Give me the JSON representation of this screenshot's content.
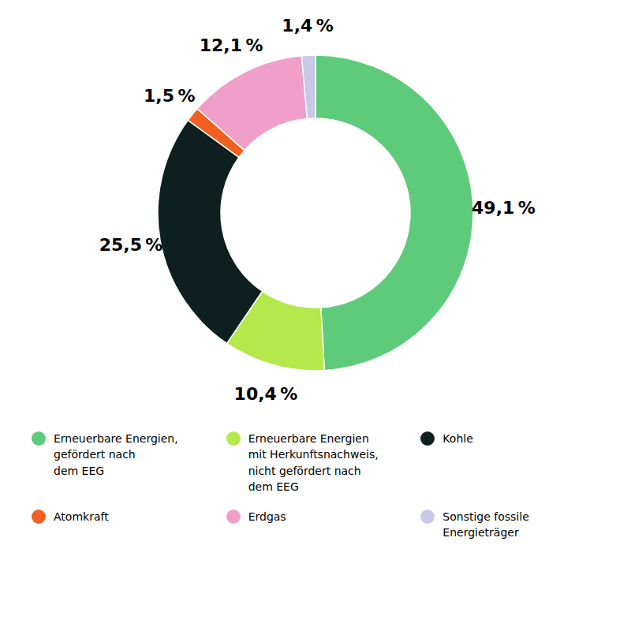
{
  "chart_data": {
    "type": "donut",
    "categories": [
      "Erneuerbare Energien,\ngefördert nach\ndem EEG",
      "Erneuerbare Energien\nmit Herkunftsnachweis,\nnicht gefördert nach\ndem EEG",
      "Kohle",
      "Atomkraft",
      "Erdgas",
      "Sonstige fossile\nEnergieträger"
    ],
    "values": [
      49.1,
      10.4,
      25.5,
      1.5,
      12.1,
      1.4
    ],
    "value_labels": [
      "49,1 %",
      "10,4 %",
      "25,5 %",
      "1,5 %",
      "12,1 %",
      "1,4 %"
    ],
    "colors": [
      "#5ecb7a",
      "#b5e84a",
      "#0d1f1f",
      "#f06020",
      "#f0a0c8",
      "#c8c8e8"
    ],
    "data_labels": true,
    "legend": "bottom"
  }
}
